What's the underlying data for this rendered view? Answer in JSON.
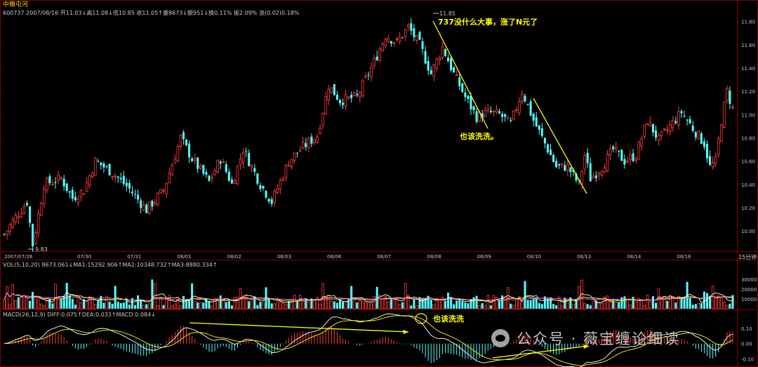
{
  "header": {
    "name": "中粮屯河",
    "info": "600737 2007/08/16 开11.03↓高11.08↓低10.85 收11.05↑量8673↓额951↓换0.11% 振2.09% 涨(0.02)0.18%"
  },
  "vol_header": "VOL(5,10,20)  8673.061↓MA1:15292.906↑MA2:10348.732↑MA3:8880.334↑",
  "macd_header": "MACD(26,12,9)  DIFF:0.075↑DEA:0.033↑MACD:0.084↓",
  "annotations": {
    "top": "737没什么大事，涨了N元了",
    "mid": "也该洗洗。",
    "macd": "也该洗洗",
    "high_label": "11.85",
    "low_label": "9.83"
  },
  "watermark": "公众号 · 薇宝缠论细读",
  "period_label": "15分钟",
  "chart_data": [
    {
      "type": "candlestick",
      "x_labels": [
        "2007/07/26",
        "07/30",
        "07/31",
        "08/01",
        "08/02",
        "08/03",
        "08/06",
        "08/07",
        "08/08",
        "08/09",
        "08/10",
        "08/13",
        "08/14",
        "08/16"
      ],
      "ylim": [
        9.85,
        11.9
      ],
      "y_ticks": [
        10.0,
        10.2,
        10.4,
        10.6,
        10.8,
        11.0,
        11.2,
        11.4,
        11.6,
        11.8
      ],
      "waypoints": [
        [
          0,
          9.97
        ],
        [
          4,
          10.12
        ],
        [
          8,
          10.25
        ],
        [
          10,
          9.88
        ],
        [
          14,
          10.4
        ],
        [
          20,
          10.45
        ],
        [
          24,
          10.28
        ],
        [
          28,
          10.35
        ],
        [
          32,
          10.6
        ],
        [
          38,
          10.5
        ],
        [
          44,
          10.36
        ],
        [
          50,
          10.18
        ],
        [
          56,
          10.35
        ],
        [
          62,
          10.8
        ],
        [
          66,
          10.62
        ],
        [
          72,
          10.42
        ],
        [
          76,
          10.62
        ],
        [
          80,
          10.4
        ],
        [
          84,
          10.7
        ],
        [
          90,
          10.4
        ],
        [
          94,
          10.25
        ],
        [
          100,
          10.6
        ],
        [
          104,
          10.7
        ],
        [
          110,
          10.82
        ],
        [
          114,
          11.25
        ],
        [
          118,
          11.12
        ],
        [
          124,
          11.15
        ],
        [
          130,
          11.45
        ],
        [
          134,
          11.68
        ],
        [
          138,
          11.62
        ],
        [
          142,
          11.75
        ],
        [
          146,
          11.6
        ],
        [
          150,
          11.35
        ],
        [
          154,
          11.58
        ],
        [
          158,
          11.35
        ],
        [
          162,
          11.15
        ],
        [
          166,
          10.98
        ],
        [
          170,
          11.02
        ],
        [
          174,
          11.0
        ],
        [
          178,
          10.92
        ],
        [
          182,
          11.2
        ],
        [
          186,
          10.95
        ],
        [
          190,
          10.75
        ],
        [
          194,
          10.55
        ],
        [
          198,
          10.55
        ],
        [
          202,
          10.4
        ],
        [
          204,
          10.65
        ],
        [
          206,
          10.45
        ],
        [
          210,
          10.55
        ],
        [
          214,
          10.7
        ],
        [
          218,
          10.6
        ],
        [
          222,
          10.65
        ],
        [
          226,
          10.95
        ],
        [
          230,
          10.78
        ],
        [
          234,
          10.9
        ],
        [
          238,
          11.02
        ],
        [
          242,
          10.88
        ],
        [
          246,
          10.75
        ],
        [
          248,
          10.55
        ],
        [
          250,
          10.6
        ],
        [
          252,
          10.95
        ],
        [
          254,
          11.2
        ],
        [
          256,
          11.05
        ]
      ],
      "candle_count": 257
    },
    {
      "type": "bar",
      "name": "VOL",
      "ylim": [
        0,
        40000
      ],
      "y_ticks": [
        10000,
        20000,
        30000
      ],
      "series_names": [
        "MA1",
        "MA2",
        "MA3"
      ]
    },
    {
      "type": "bar",
      "name": "MACD",
      "ylim": [
        -0.14,
        0.16
      ],
      "y_ticks": [
        -0.1,
        0.0,
        0.1
      ],
      "series_names": [
        "DIFF",
        "DEA",
        "MACD"
      ]
    }
  ]
}
